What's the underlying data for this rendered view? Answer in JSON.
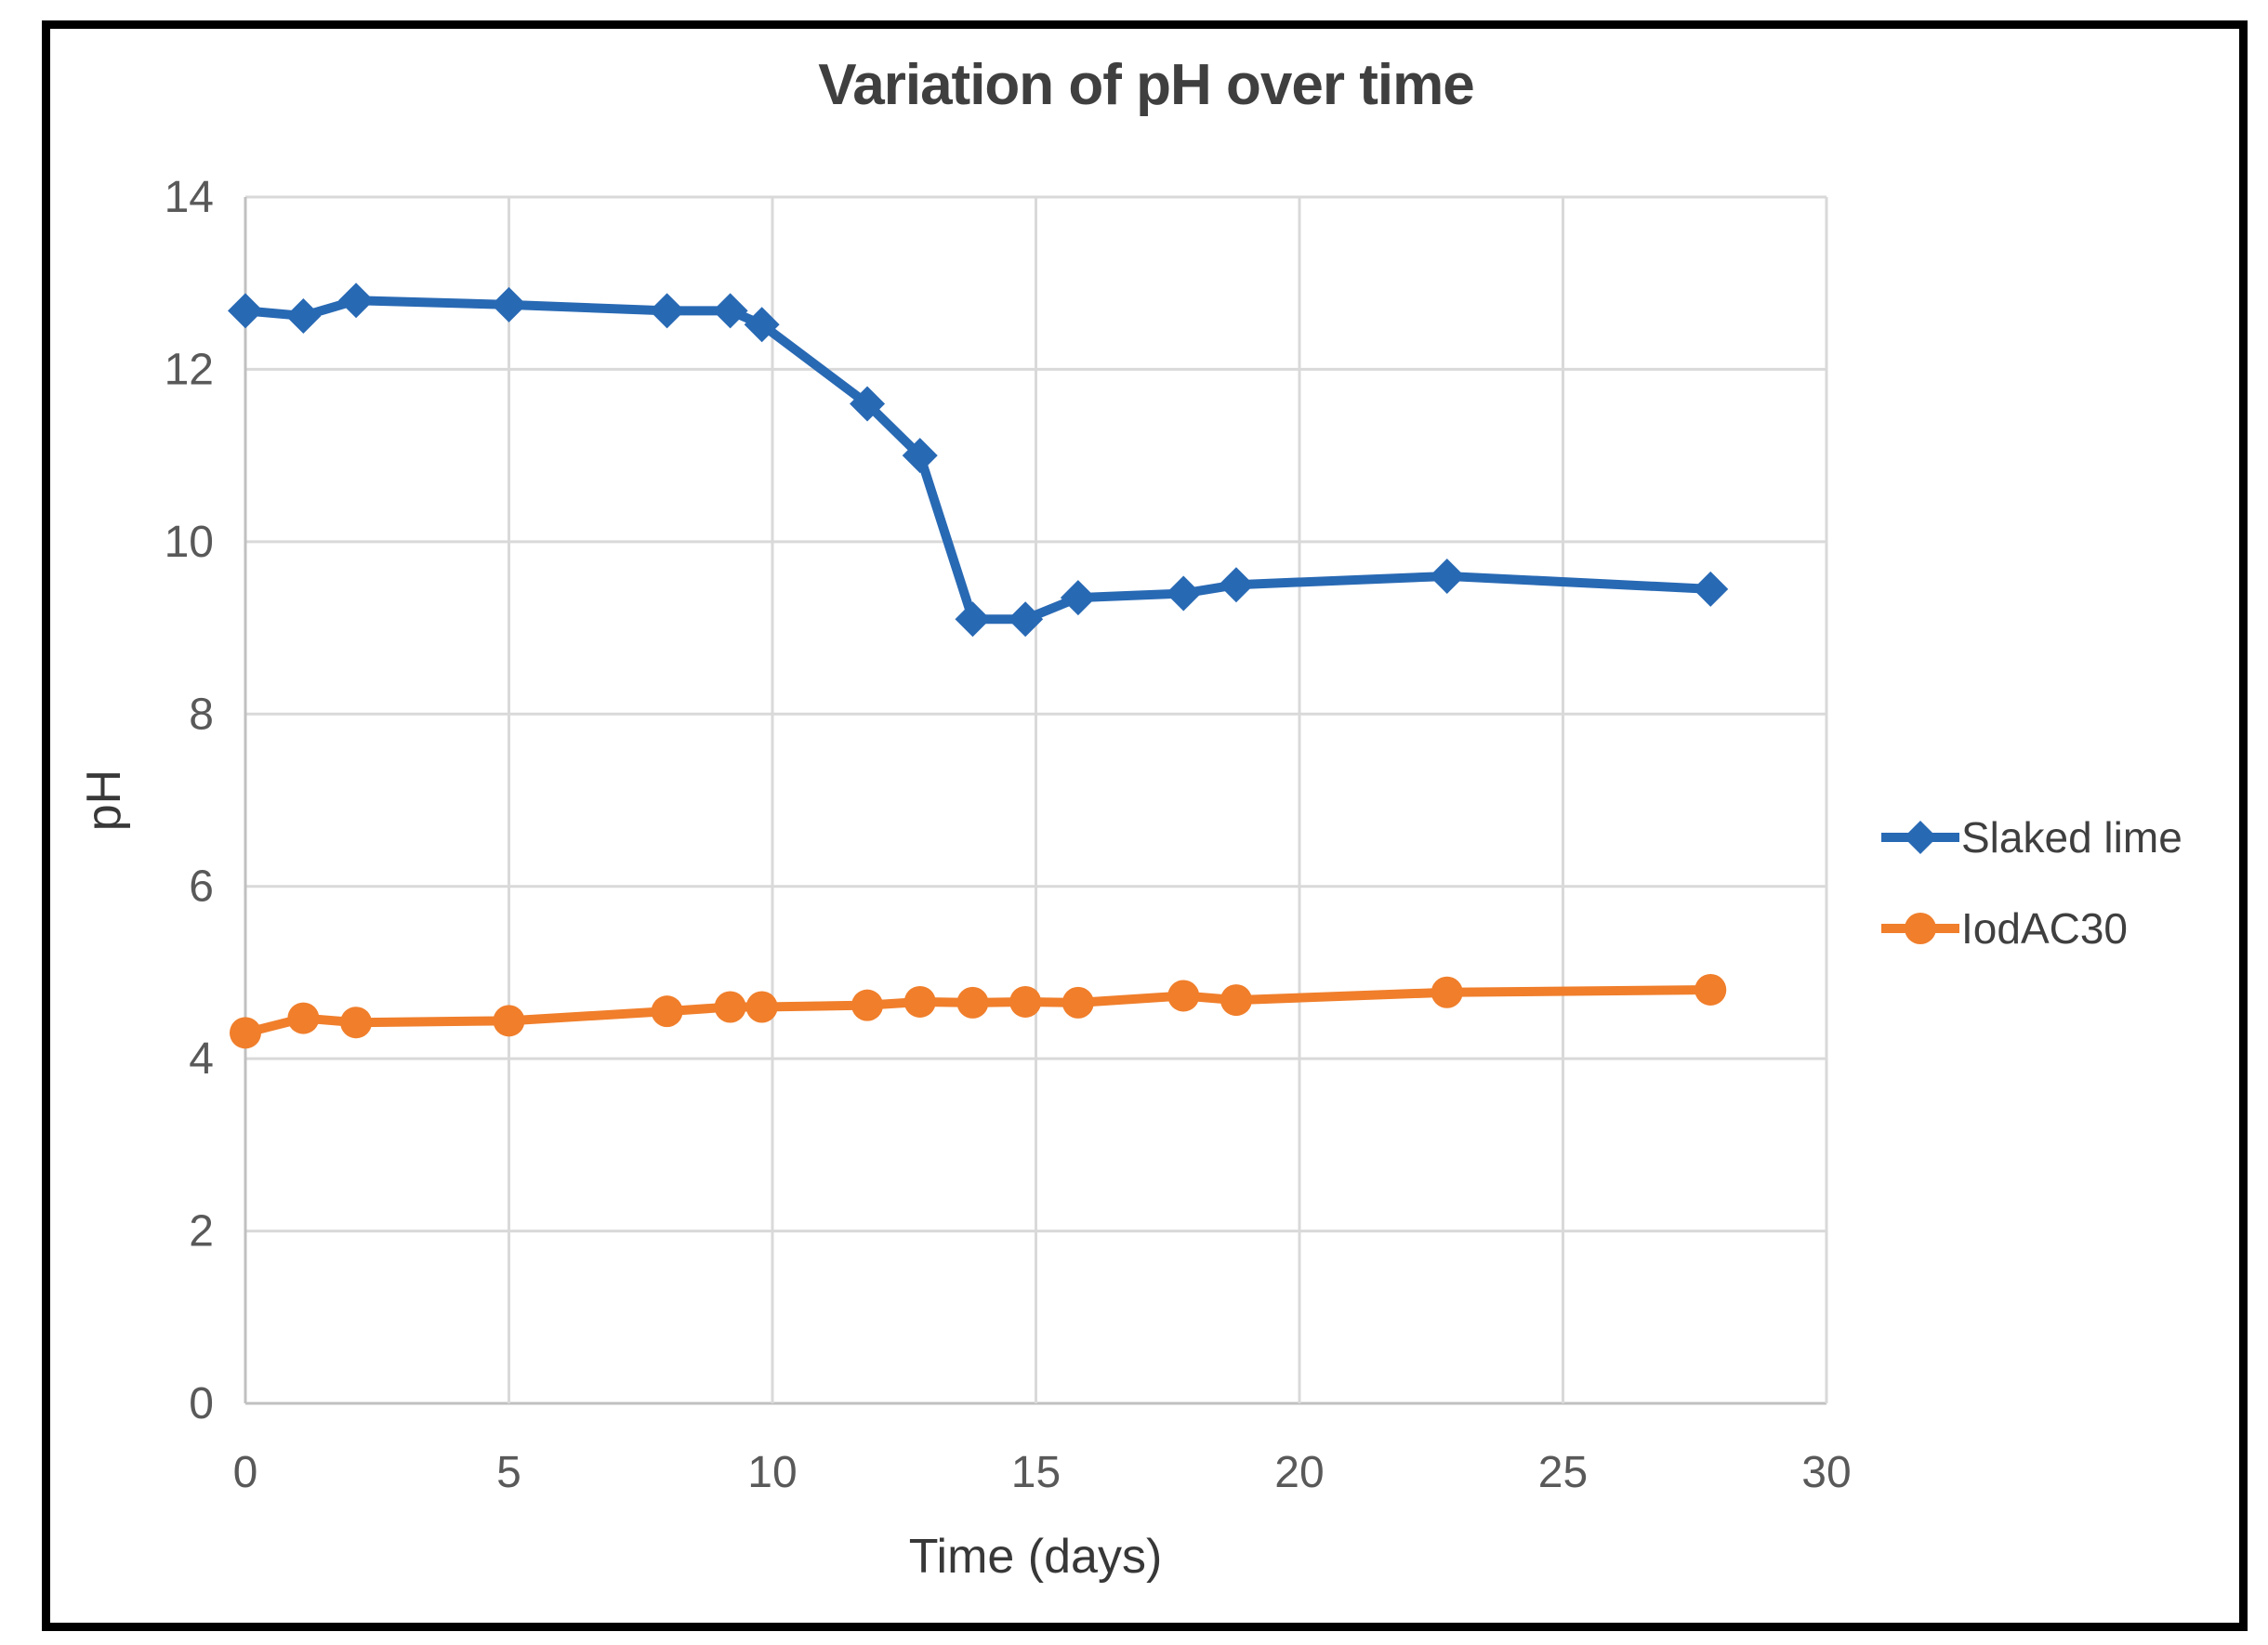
{
  "figure": {
    "border_color": "#000000",
    "background_color": "#ffffff"
  },
  "chart_data": {
    "type": "line",
    "title": "Variation of pH over time",
    "xlabel": "Time (days)",
    "ylabel": "pH",
    "xlim": [
      0,
      30
    ],
    "ylim": [
      0,
      14
    ],
    "x_ticks": [
      0,
      5,
      10,
      15,
      20,
      25,
      30
    ],
    "y_ticks": [
      0,
      2,
      4,
      6,
      8,
      10,
      12,
      14
    ],
    "grid": true,
    "legend_position": "right",
    "colors": {
      "gridline": "#d9d9d9",
      "axis_line": "#c0c0c0",
      "tick_label": "#595959"
    },
    "series": [
      {
        "name": "Slaked lime",
        "color": "#2869b4",
        "marker": "diamond",
        "x": [
          0,
          1.1,
          2.1,
          5,
          8,
          9.2,
          9.8,
          11.8,
          12.8,
          13.8,
          14.8,
          15.8,
          17.8,
          18.8,
          22.8,
          27.8
        ],
        "y": [
          12.68,
          12.62,
          12.8,
          12.75,
          12.68,
          12.68,
          12.52,
          11.6,
          11.0,
          9.1,
          9.1,
          9.35,
          9.4,
          9.5,
          9.6,
          9.45
        ]
      },
      {
        "name": "IodAC30",
        "color": "#f07e2b",
        "marker": "circle",
        "x": [
          0,
          1.1,
          2.1,
          5,
          8,
          9.2,
          9.8,
          11.8,
          12.8,
          13.8,
          14.8,
          15.8,
          17.8,
          18.8,
          22.8,
          27.8
        ],
        "y": [
          4.3,
          4.47,
          4.42,
          4.44,
          4.55,
          4.6,
          4.6,
          4.62,
          4.66,
          4.65,
          4.66,
          4.65,
          4.73,
          4.68,
          4.77,
          4.8
        ]
      }
    ]
  }
}
